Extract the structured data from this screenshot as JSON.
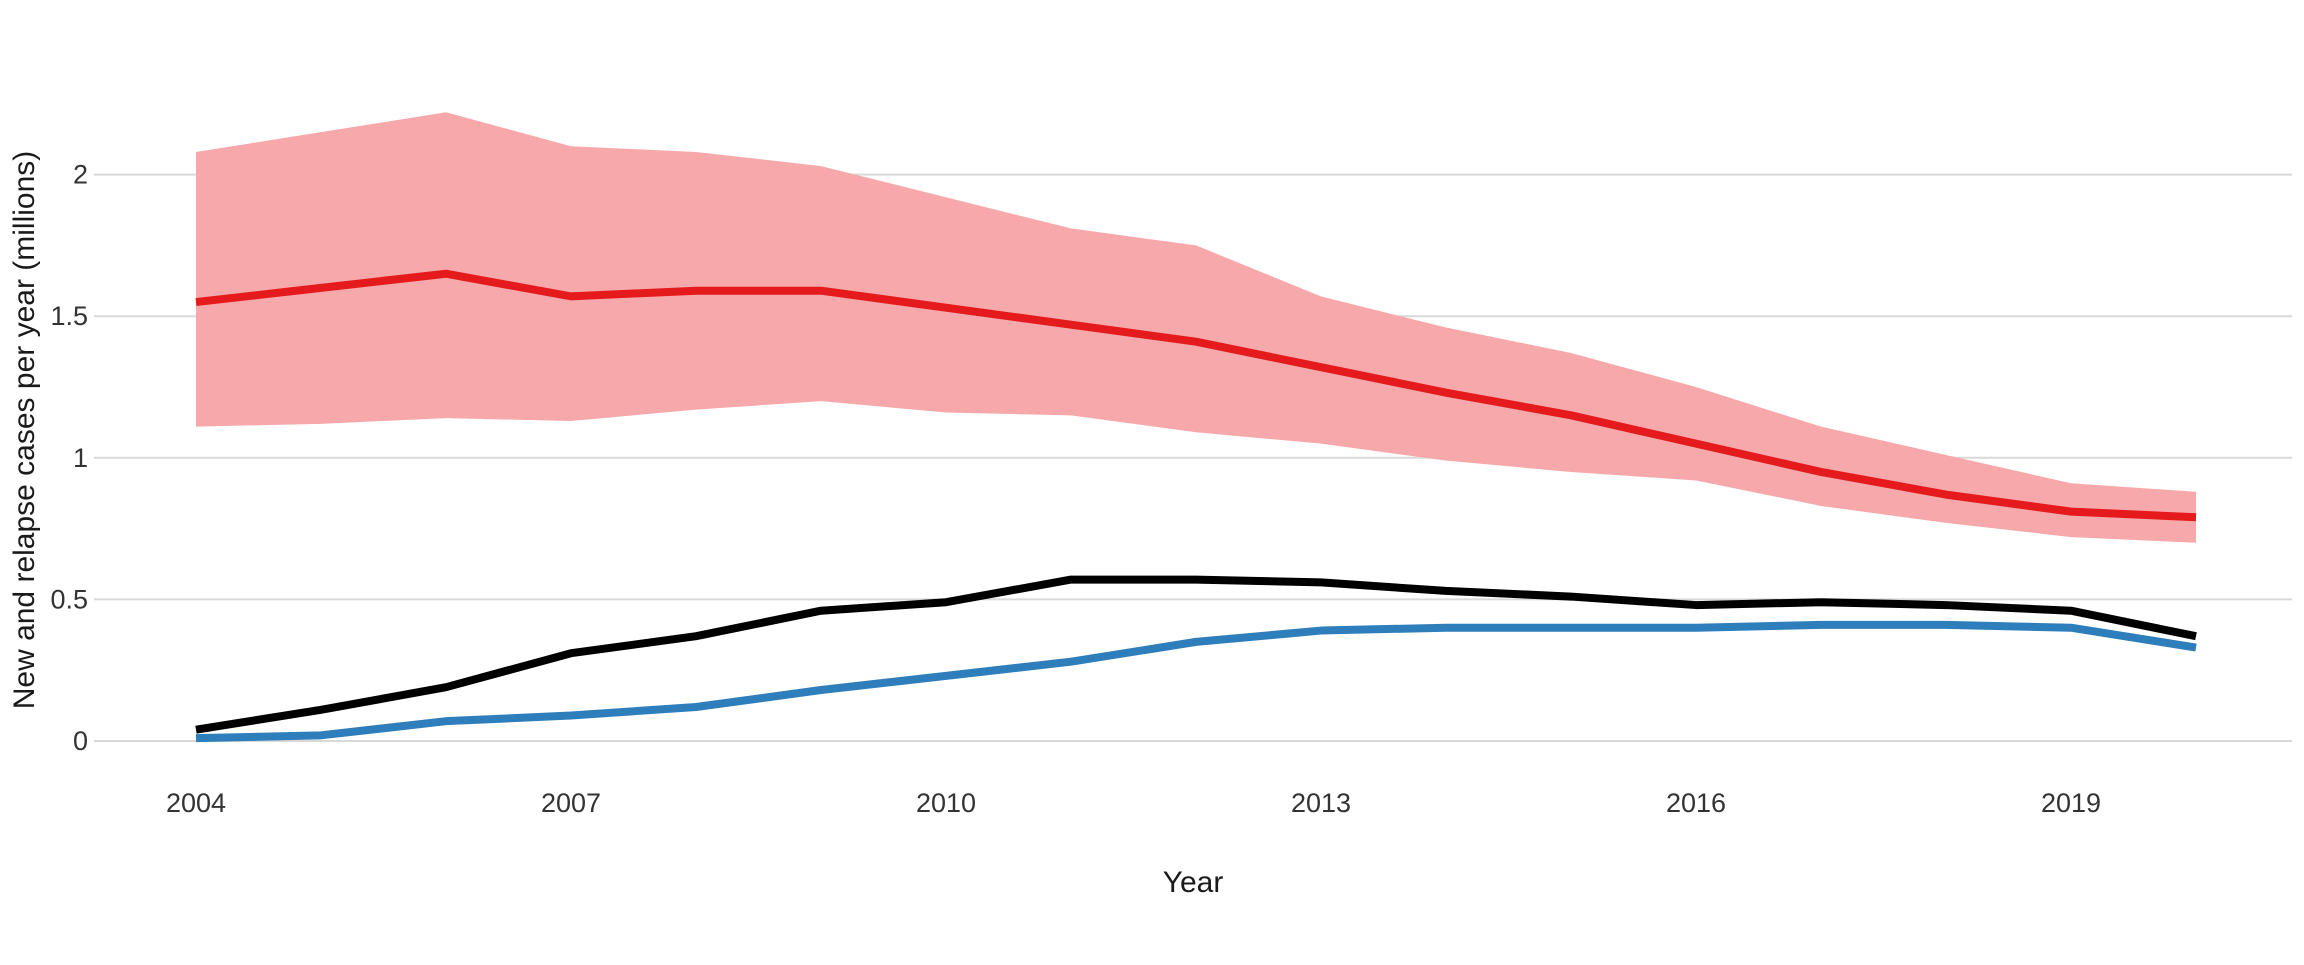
{
  "figure": {
    "title": "",
    "x_axis_title": "Year",
    "y_axis_title": "New and relapse cases per year (millions)"
  },
  "colors": {
    "red_line": "#e41a1c",
    "confidence_band": "#f7a8ab",
    "black_line": "#000000",
    "blue_line": "#2e7ebc",
    "gridline": "#d9d9d9",
    "tick_text": "#333333",
    "background": "#ffffff"
  },
  "chart_data": {
    "type": "line",
    "title": "",
    "xlabel": "Year",
    "ylabel": "New and relapse cases per year (millions)",
    "x": [
      2004,
      2005,
      2006,
      2007,
      2008,
      2009,
      2010,
      2011,
      2012,
      2013,
      2014,
      2015,
      2016,
      2017,
      2018,
      2019,
      2020
    ],
    "series": [
      {
        "name": "red line with shaded uncertainty band",
        "color": "#e41a1c",
        "values": [
          1.55,
          1.6,
          1.65,
          1.57,
          1.59,
          1.59,
          1.53,
          1.47,
          1.41,
          1.32,
          1.23,
          1.15,
          1.05,
          0.95,
          0.87,
          0.81,
          0.79
        ],
        "band": {
          "color": "#f7a8ab",
          "upper": [
            2.08,
            2.15,
            2.22,
            2.1,
            2.08,
            2.03,
            1.92,
            1.81,
            1.75,
            1.57,
            1.46,
            1.37,
            1.25,
            1.11,
            1.01,
            0.91,
            0.88
          ],
          "lower": [
            1.11,
            1.12,
            1.14,
            1.13,
            1.17,
            1.2,
            1.16,
            1.15,
            1.09,
            1.05,
            0.99,
            0.95,
            0.92,
            0.83,
            0.77,
            0.72,
            0.7
          ]
        }
      },
      {
        "name": "black line",
        "color": "#000000",
        "values": [
          0.04,
          0.11,
          0.19,
          0.31,
          0.37,
          0.46,
          0.49,
          0.57,
          0.57,
          0.56,
          0.53,
          0.51,
          0.48,
          0.49,
          0.48,
          0.46,
          0.37
        ]
      },
      {
        "name": "blue line",
        "color": "#2e7ebc",
        "values": [
          0.01,
          0.02,
          0.07,
          0.09,
          0.12,
          0.18,
          0.23,
          0.28,
          0.35,
          0.39,
          0.4,
          0.4,
          0.4,
          0.41,
          0.41,
          0.4,
          0.33
        ]
      }
    ],
    "x_ticks": [
      {
        "label": "2004",
        "value": 2004
      },
      {
        "label": "2007",
        "value": 2007
      },
      {
        "label": "2010",
        "value": 2010
      },
      {
        "label": "2013",
        "value": 2013
      },
      {
        "label": "2016",
        "value": 2016
      },
      {
        "label": "2019",
        "value": 2019
      }
    ],
    "y_ticks": [
      {
        "label": "0",
        "value": 0
      },
      {
        "label": "0.5",
        "value": 0.5
      },
      {
        "label": "1",
        "value": 1
      },
      {
        "label": "1.5",
        "value": 1.5
      },
      {
        "label": "2",
        "value": 2
      }
    ],
    "xlim": [
      2004,
      2020
    ],
    "ylim": [
      0,
      2.35
    ],
    "grid": "horizontal gridlines only",
    "legend_position": "none"
  }
}
